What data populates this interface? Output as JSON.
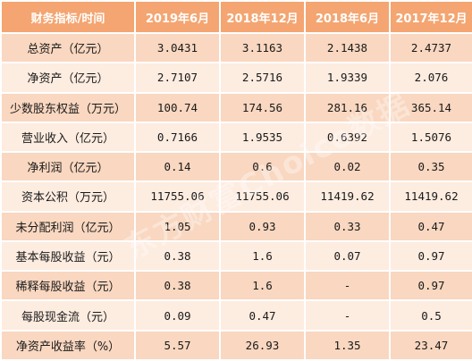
{
  "table": {
    "headers": [
      "财务指标/时间",
      "2019年6月",
      "2018年12月",
      "2018年6月",
      "2017年12月"
    ],
    "rows": [
      {
        "label": "总资产（亿元）",
        "values": [
          "3.0431",
          "3.1163",
          "2.1438",
          "2.4737"
        ]
      },
      {
        "label": "净资产（亿元）",
        "values": [
          "2.7107",
          "2.5716",
          "1.9339",
          "2.076"
        ]
      },
      {
        "label": "少数股东权益（万元）",
        "values": [
          "100.74",
          "174.56",
          "281.16",
          "365.14"
        ]
      },
      {
        "label": "营业收入（亿元）",
        "values": [
          "0.7166",
          "1.9535",
          "0.6392",
          "1.5076"
        ]
      },
      {
        "label": "净利润（亿元）",
        "values": [
          "0.14",
          "0.6",
          "0.02",
          "0.35"
        ]
      },
      {
        "label": "资本公积（万元）",
        "values": [
          "11755.06",
          "11755.06",
          "11419.62",
          "11419.62"
        ]
      },
      {
        "label": "未分配利润（亿元）",
        "values": [
          "1.05",
          "0.93",
          "0.33",
          "0.47"
        ]
      },
      {
        "label": "基本每股收益（元）",
        "values": [
          "0.38",
          "1.6",
          "0.07",
          "0.97"
        ]
      },
      {
        "label": "稀释每股收益（元）",
        "values": [
          "0.38",
          "1.6",
          "-",
          "0.97"
        ]
      },
      {
        "label": "每股现金流（元）",
        "values": [
          "0.09",
          "0.47",
          "-",
          "0.5"
        ]
      },
      {
        "label": "净资产收益率（%）",
        "values": [
          "5.57",
          "26.93",
          "1.35",
          "23.47"
        ]
      }
    ]
  },
  "watermark": {
    "text": "东方财富Choice数据"
  },
  "colors": {
    "header_bg": "#f4a571",
    "row_dark": "#f9d7c0",
    "row_light": "#fdece0"
  }
}
